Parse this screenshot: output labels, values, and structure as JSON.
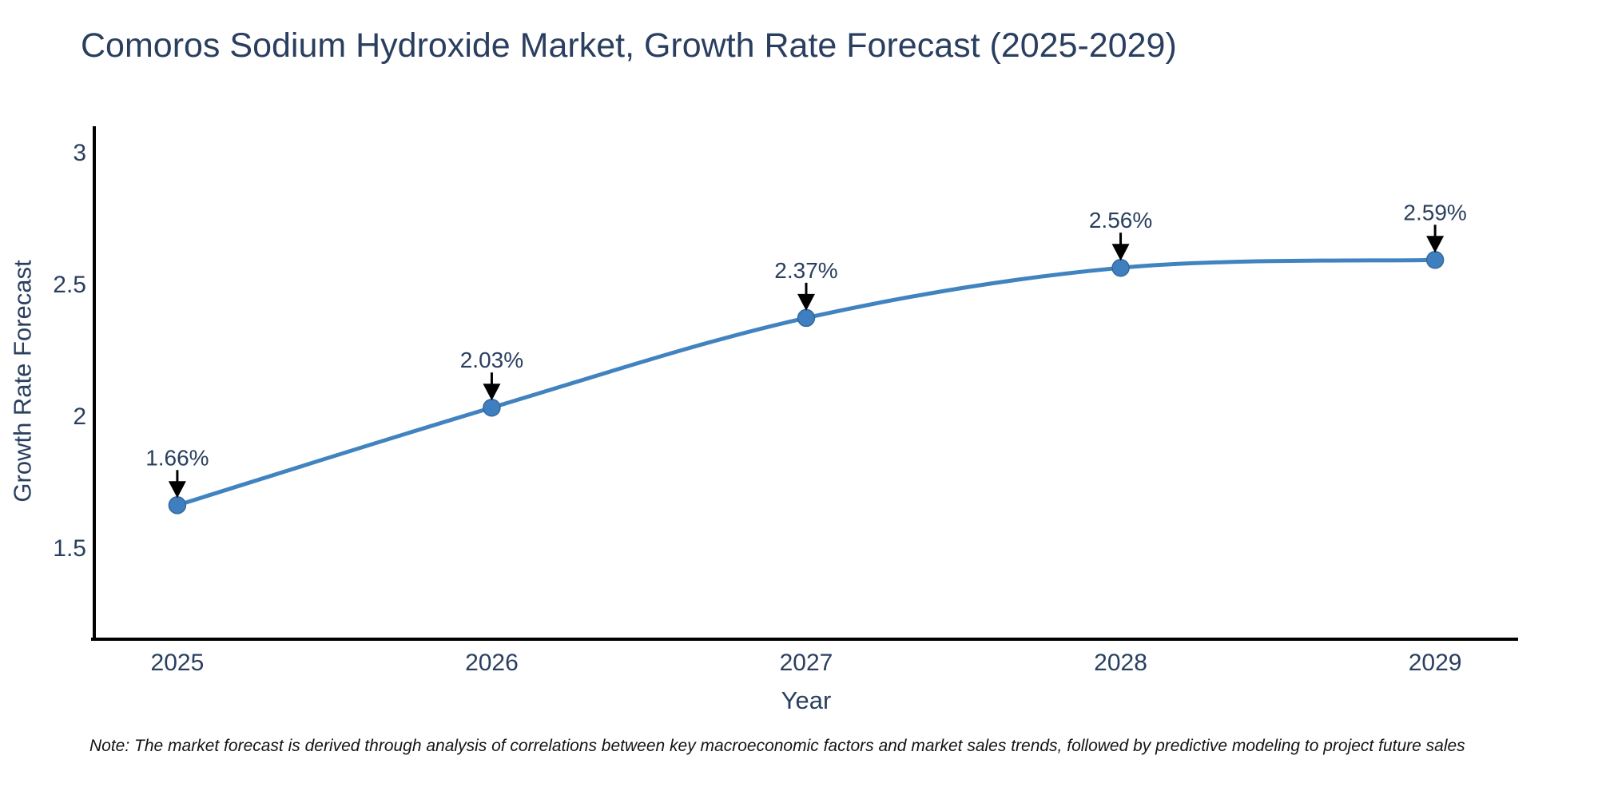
{
  "title": "Comoros Sodium Hydroxide Market, Growth Rate Forecast (2025-2029)",
  "note": "Note: The market forecast is derived through analysis of correlations between key macroeconomic factors and market sales trends, followed by predictive modeling to project future sales",
  "chart_data": {
    "type": "line",
    "title": "Comoros Sodium Hydroxide Market, Growth Rate Forecast (2025-2029)",
    "xlabel": "Year",
    "ylabel": "Growth Rate Forecast",
    "x": [
      2025,
      2026,
      2027,
      2028,
      2029
    ],
    "series": [
      {
        "name": "Growth Rate Forecast",
        "values": [
          1.66,
          2.03,
          2.37,
          2.56,
          2.59
        ]
      }
    ],
    "point_labels": [
      "1.66%",
      "2.03%",
      "2.37%",
      "2.56%",
      "2.59%"
    ],
    "x_ticks": [
      2025,
      2026,
      2027,
      2028,
      2029
    ],
    "y_ticks": [
      1.5,
      2,
      2.5,
      3
    ],
    "xlim": [
      2024.736,
      2029.264
    ],
    "ylim": [
      1.152,
      3.106
    ],
    "line_shape": "spline",
    "grid": false,
    "legend": "none",
    "colors": {
      "line": "#4083bf",
      "marker_fill": "#3f7fbf",
      "marker_edge": "#34689c",
      "axis": "#000000",
      "text": "#2a3f5f",
      "annotation_arrow": "#000000"
    }
  }
}
